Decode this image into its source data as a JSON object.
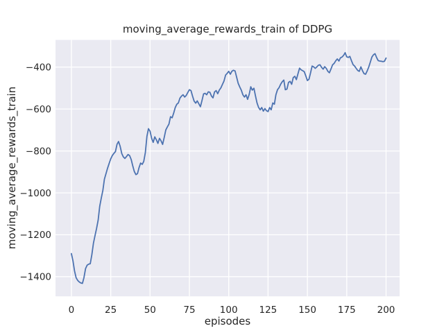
{
  "chart_data": {
    "type": "line",
    "title": "moving_average_rewards_train of DDPG",
    "xlabel": "episodes",
    "ylabel": "moving_average_rewards_train",
    "xticks": [
      0,
      25,
      50,
      75,
      100,
      125,
      150,
      175,
      200
    ],
    "yticks": [
      -400,
      -600,
      -800,
      -1000,
      -1200,
      -1400
    ],
    "xlim": [
      -10.1,
      208.6
    ],
    "ylim": [
      -1494,
      -270.5
    ],
    "grid": true,
    "legend": false,
    "x_start": 0,
    "x_step": 1,
    "colors": {
      "figure_background": "#FFFFFF",
      "axes_background": "#EAEAF2",
      "grid": "#FFFFFF",
      "line": "#4C72B0",
      "text": "#262626"
    },
    "series": [
      {
        "name": "moving_average_rewards_train",
        "values": [
          -1290,
          -1325,
          -1372,
          -1405,
          -1418,
          -1425,
          -1430,
          -1432,
          -1405,
          -1362,
          -1345,
          -1340,
          -1338,
          -1295,
          -1240,
          -1205,
          -1170,
          -1130,
          -1065,
          -1025,
          -988,
          -935,
          -908,
          -882,
          -860,
          -838,
          -822,
          -812,
          -803,
          -768,
          -755,
          -778,
          -812,
          -828,
          -836,
          -827,
          -817,
          -822,
          -841,
          -872,
          -898,
          -913,
          -908,
          -880,
          -858,
          -864,
          -850,
          -808,
          -730,
          -694,
          -706,
          -740,
          -759,
          -733,
          -747,
          -764,
          -740,
          -752,
          -769,
          -736,
          -700,
          -685,
          -672,
          -637,
          -642,
          -620,
          -593,
          -577,
          -571,
          -548,
          -538,
          -532,
          -543,
          -535,
          -521,
          -508,
          -512,
          -538,
          -562,
          -572,
          -561,
          -575,
          -589,
          -560,
          -528,
          -525,
          -532,
          -518,
          -520,
          -538,
          -547,
          -518,
          -512,
          -527,
          -510,
          -499,
          -483,
          -466,
          -438,
          -430,
          -420,
          -434,
          -420,
          -415,
          -418,
          -447,
          -477,
          -495,
          -510,
          -532,
          -543,
          -532,
          -554,
          -530,
          -494,
          -510,
          -501,
          -538,
          -571,
          -593,
          -604,
          -593,
          -610,
          -598,
          -608,
          -612,
          -593,
          -604,
          -571,
          -577,
          -532,
          -508,
          -498,
          -482,
          -470,
          -462,
          -508,
          -505,
          -473,
          -468,
          -482,
          -450,
          -444,
          -460,
          -432,
          -405,
          -413,
          -417,
          -422,
          -442,
          -464,
          -458,
          -428,
          -395,
          -399,
          -406,
          -399,
          -391,
          -389,
          -401,
          -410,
          -398,
          -406,
          -420,
          -427,
          -409,
          -389,
          -382,
          -370,
          -361,
          -371,
          -356,
          -352,
          -344,
          -331,
          -351,
          -354,
          -349,
          -369,
          -388,
          -395,
          -406,
          -416,
          -420,
          -399,
          -417,
          -431,
          -434,
          -418,
          -400,
          -376,
          -352,
          -341,
          -336,
          -355,
          -369,
          -371,
          -372,
          -374,
          -372,
          -357
        ]
      }
    ]
  }
}
